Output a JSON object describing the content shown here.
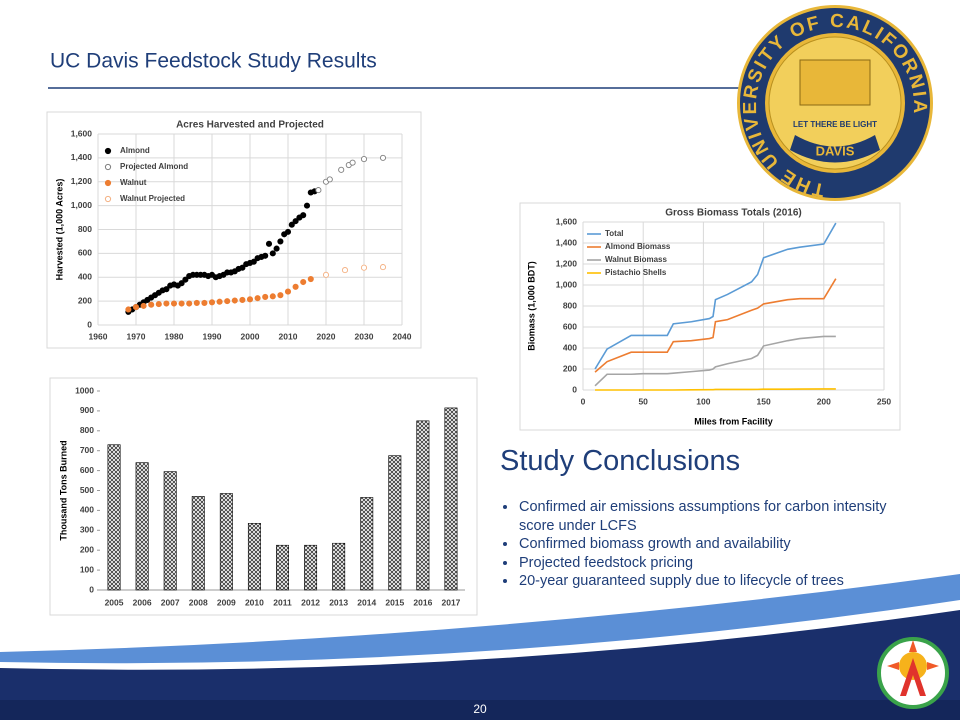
{
  "title": "UC Davis Feedstock Study Results",
  "slide_number": "20",
  "logo": {
    "ring_text": "THE UNIVERSITY OF CALIFORNIA",
    "motto": "LET THERE BE LIGHT",
    "center": "DAVIS"
  },
  "conclusions": {
    "heading": "Study Conclusions",
    "bullets": [
      "Confirmed air emissions assumptions for carbon intensity score under LCFS",
      "Confirmed biomass growth and availability",
      "Projected feedstock pricing",
      "20-year guaranteed supply due to lifecycle of trees"
    ]
  },
  "chart_data": [
    {
      "type": "scatter",
      "title": "Acres Harvested and Projected",
      "y_label": "Harvested (1,000 Acres)",
      "xlim": [
        1960,
        2040
      ],
      "xticks": [
        1960,
        1970,
        1980,
        1990,
        2000,
        2010,
        2020,
        2030,
        2040
      ],
      "ylim": [
        0,
        1600
      ],
      "yticks": [
        0,
        200,
        400,
        600,
        800,
        {
          "value": 1000,
          "label": "1,000"
        },
        {
          "value": 1200,
          "label": "1,200"
        },
        {
          "value": 1400,
          "label": "1,400"
        },
        {
          "value": 1600,
          "label": "1,600"
        }
      ],
      "grid": true,
      "legend": "upper left",
      "series": [
        {
          "name": "Almond",
          "color": "#000000",
          "marker": "filled",
          "x": [
            1968,
            1969,
            1970,
            1971,
            1972,
            1973,
            1974,
            1975,
            1976,
            1977,
            1978,
            1979,
            1980,
            1981,
            1982,
            1983,
            1984,
            1985,
            1986,
            1987,
            1988,
            1989,
            1990,
            1991,
            1992,
            1993,
            1994,
            1995,
            1996,
            1997,
            1998,
            1999,
            2000,
            2001,
            2002,
            2003,
            2004,
            2005,
            2006,
            2007,
            2008,
            2009,
            2010,
            2011,
            2012,
            2013,
            2014,
            2015,
            2016,
            2017
          ],
          "values": [
            110,
            130,
            150,
            170,
            190,
            210,
            230,
            250,
            270,
            290,
            300,
            330,
            340,
            330,
            350,
            380,
            410,
            420,
            420,
            420,
            420,
            410,
            420,
            400,
            410,
            420,
            440,
            440,
            450,
            470,
            480,
            510,
            520,
            530,
            560,
            570,
            580,
            680,
            600,
            640,
            700,
            760,
            780,
            840,
            870,
            900,
            920,
            1000,
            1110,
            1120
          ]
        },
        {
          "name": "Projected Almond",
          "color": "#7f7f7f",
          "marker": "hollow",
          "x": [
            2018,
            2020,
            2021,
            2024,
            2026,
            2027,
            2030,
            2035
          ],
          "values": [
            1130,
            1200,
            1220,
            1300,
            1340,
            1360,
            1390,
            1400
          ]
        },
        {
          "name": "Walnut",
          "color": "#ed7d31",
          "marker": "filled",
          "x": [
            1968,
            1970,
            1972,
            1974,
            1976,
            1978,
            1980,
            1982,
            1984,
            1986,
            1988,
            1990,
            1992,
            1994,
            1996,
            1998,
            2000,
            2002,
            2004,
            2006,
            2008,
            2010,
            2012,
            2014,
            2016
          ],
          "values": [
            130,
            150,
            160,
            170,
            175,
            180,
            180,
            180,
            180,
            185,
            185,
            190,
            195,
            200,
            205,
            210,
            215,
            225,
            235,
            240,
            250,
            280,
            320,
            360,
            385
          ]
        },
        {
          "name": "Walnut Projected",
          "color": "#f4b183",
          "marker": "hollow",
          "x": [
            2020,
            2025,
            2030,
            2035
          ],
          "values": [
            420,
            460,
            480,
            485
          ]
        }
      ]
    },
    {
      "type": "line",
      "title": "Gross Biomass Totals (2016)",
      "x_label": "Miles from Facility",
      "y_label": "Biomass (1,000 BDT)",
      "xlim": [
        0,
        250
      ],
      "xticks": [
        0,
        50,
        100,
        150,
        200,
        250
      ],
      "ylim": [
        0,
        1600
      ],
      "yticks": [
        0,
        200,
        400,
        600,
        800,
        {
          "value": 1000,
          "label": "1,000"
        },
        {
          "value": 1200,
          "label": "1,200"
        },
        {
          "value": 1400,
          "label": "1,400"
        },
        {
          "value": 1600,
          "label": "1,600"
        }
      ],
      "grid": true,
      "legend": "upper left",
      "x": [
        10,
        20,
        40,
        50,
        70,
        75,
        90,
        105,
        108,
        110,
        120,
        140,
        145,
        150,
        170,
        180,
        200,
        210
      ],
      "series": [
        {
          "name": "Total",
          "color": "#5b9bd5",
          "values": [
            200,
            390,
            520,
            520,
            520,
            630,
            650,
            680,
            700,
            860,
            910,
            1030,
            1100,
            1260,
            1340,
            1360,
            1390,
            1590
          ]
        },
        {
          "name": "Almond Biomass",
          "color": "#ed7d31",
          "values": [
            170,
            270,
            360,
            360,
            360,
            460,
            470,
            490,
            500,
            650,
            670,
            760,
            780,
            820,
            860,
            870,
            870,
            1060
          ]
        },
        {
          "name": "Walnut Biomass",
          "color": "#a5a5a5",
          "values": [
            40,
            150,
            150,
            155,
            155,
            160,
            175,
            190,
            200,
            220,
            250,
            300,
            330,
            420,
            470,
            490,
            510,
            510
          ]
        },
        {
          "name": "Pistachio Shells",
          "color": "#ffc000",
          "values": [
            0,
            0,
            0,
            0,
            0,
            0,
            2,
            3,
            3,
            5,
            5,
            5,
            6,
            8,
            8,
            9,
            10,
            10
          ]
        }
      ]
    },
    {
      "type": "bar",
      "y_label": "Thousand Tons Burned",
      "categories": [
        "2005",
        "2006",
        "2007",
        "2008",
        "2009",
        "2010",
        "2011",
        "2012",
        "2013",
        "2014",
        "2015",
        "2016",
        "2017"
      ],
      "values": [
        730,
        640,
        595,
        470,
        485,
        335,
        225,
        225,
        235,
        465,
        675,
        850,
        915
      ],
      "color": "#000000",
      "pattern": "hatch",
      "grid": false,
      "ylim": [
        0,
        1000
      ],
      "yticks": [
        0,
        100,
        200,
        300,
        400,
        500,
        600,
        700,
        800,
        900,
        1000
      ]
    }
  ]
}
